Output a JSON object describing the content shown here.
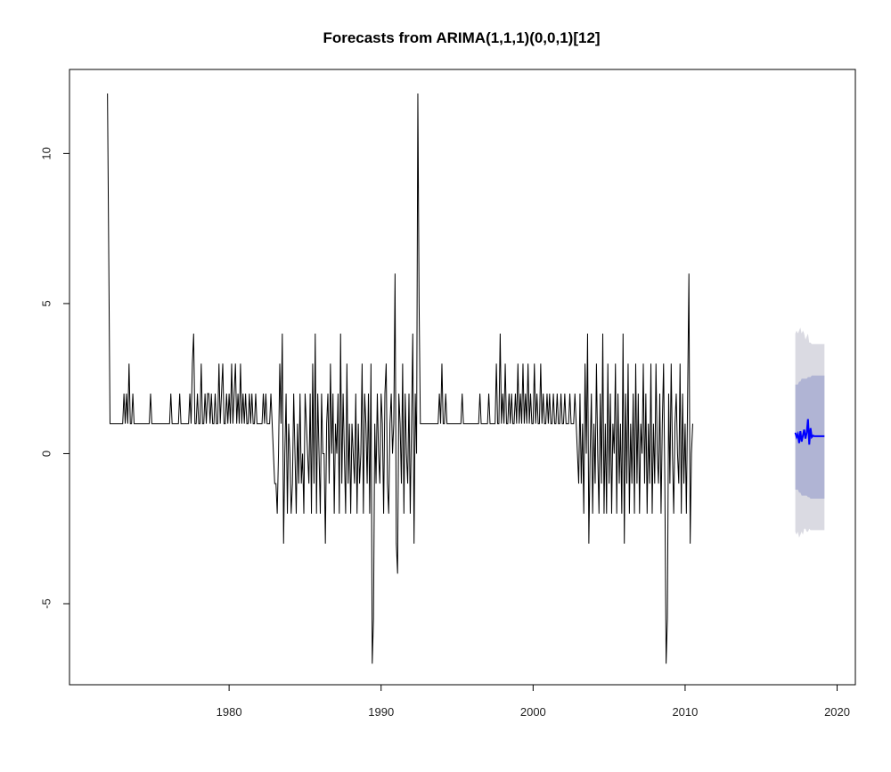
{
  "chart_data": {
    "type": "line",
    "title": "Forecasts from ARIMA(1,1,1)(0,0,1)[12]",
    "xlabel": "",
    "ylabel": "",
    "xlim": [
      1969.5,
      2021.2
    ],
    "ylim": [
      -7.7,
      12.8
    ],
    "x_ticks": [
      1980,
      1990,
      2000,
      2010,
      2020
    ],
    "y_ticks": [
      -5,
      0,
      5,
      10
    ],
    "grid": false,
    "legend": "none",
    "colors": {
      "observed": "#000000",
      "forecast": "#0000FF",
      "pi80": "#B0B4D4",
      "pi95": "#DADAE2"
    },
    "observed": {
      "name": "",
      "start": 1972.0,
      "frequency": 12,
      "values": [
        12,
        6.5,
        1,
        1,
        1,
        1,
        1,
        1,
        1,
        1,
        1,
        1,
        1,
        2,
        1,
        2,
        1,
        3,
        1,
        1,
        2,
        1,
        1,
        1,
        1,
        1,
        1,
        1,
        1,
        1,
        1,
        1,
        1,
        1,
        2,
        1,
        1,
        1,
        1,
        1,
        1,
        1,
        1,
        1,
        1,
        1,
        1,
        1,
        1,
        1,
        2,
        1,
        1,
        1,
        1,
        1,
        1,
        2,
        1,
        1,
        1,
        1,
        1,
        1,
        1,
        2,
        1,
        3,
        4,
        1,
        1,
        2,
        1,
        1,
        3,
        1,
        1,
        2,
        1,
        2,
        2,
        1,
        2,
        1,
        1,
        2,
        1,
        1,
        3,
        1,
        2,
        3,
        1,
        1,
        2,
        1,
        2,
        1,
        3,
        1,
        2,
        3,
        1,
        2,
        1,
        3,
        1,
        2,
        1,
        2,
        1,
        1,
        2,
        1,
        2,
        1,
        1,
        2,
        1,
        1,
        1,
        1,
        1,
        2,
        1,
        2,
        1,
        1,
        1,
        2,
        1,
        0,
        -1,
        -1,
        -2,
        0,
        3,
        1,
        4,
        -3,
        0,
        2,
        -2,
        1,
        0,
        -2,
        -1,
        2,
        0,
        -2,
        1,
        -1,
        2,
        -1,
        0,
        -2,
        2,
        1,
        0,
        -1,
        2,
        -2,
        3,
        -1,
        4,
        -2,
        2,
        0,
        -2,
        2,
        0,
        0,
        -3,
        1,
        2,
        -1,
        3,
        0,
        2,
        -2,
        1,
        0,
        2,
        -2,
        4,
        -1,
        2,
        0,
        -2,
        3,
        -1,
        1,
        -2,
        1,
        0,
        -1,
        2,
        -2,
        1,
        -1,
        0,
        3,
        -2,
        2,
        1,
        -1,
        2,
        -2,
        3,
        -7,
        -5.5,
        1,
        -1,
        2,
        0,
        -1,
        2,
        1,
        -2,
        2,
        3,
        -1,
        -2,
        1,
        2,
        0,
        1,
        6,
        -3,
        -4,
        2,
        1,
        -1,
        3,
        -2,
        2,
        0,
        -1,
        2,
        -2,
        1,
        4,
        -3,
        2,
        0,
        12,
        5,
        1,
        1,
        1,
        1,
        1,
        1,
        1,
        1,
        1,
        1,
        1,
        1,
        1,
        1,
        1,
        2,
        1,
        3,
        1,
        1,
        2,
        1,
        1,
        1,
        1,
        1,
        1,
        1,
        1,
        1,
        1,
        1,
        1,
        2,
        1,
        1,
        1,
        1,
        1,
        1,
        1,
        1,
        1,
        1,
        1,
        1,
        1,
        2,
        1,
        1,
        1,
        1,
        1,
        1,
        2,
        1,
        1,
        1,
        1,
        1,
        3,
        1,
        1,
        4,
        1,
        2,
        1,
        3,
        1,
        1,
        2,
        1,
        2,
        1,
        1,
        2,
        1,
        3,
        1,
        2,
        1,
        3,
        1,
        2,
        1,
        3,
        1,
        2,
        1,
        1,
        3,
        1,
        2,
        1,
        1,
        3,
        1,
        2,
        1,
        1,
        2,
        1,
        2,
        1,
        1,
        2,
        1,
        1,
        2,
        1,
        1,
        2,
        1,
        1,
        2,
        1,
        1,
        1,
        2,
        1,
        1,
        1,
        2,
        1,
        0,
        -1,
        2,
        -1,
        1,
        -2,
        3,
        0,
        4,
        -3,
        0,
        2,
        -2,
        1,
        -1,
        3,
        0,
        -2,
        2,
        -1,
        4,
        -2,
        1,
        -2,
        3,
        -1,
        2,
        -2,
        1,
        0,
        3,
        -2,
        2,
        -1,
        1,
        -2,
        4,
        -3,
        2,
        -1,
        3,
        -2,
        1,
        -1,
        2,
        -2,
        3,
        -1,
        2,
        -2,
        1,
        0,
        3,
        -1,
        2,
        -2,
        1,
        -1,
        3,
        -2,
        1,
        -1,
        3,
        0,
        -1,
        2,
        -2,
        1,
        3,
        -1,
        -7,
        -5.5,
        2,
        -1,
        3,
        0,
        -2,
        1,
        2,
        0,
        -1,
        3,
        -2,
        2,
        -1,
        1,
        -2,
        2,
        6,
        -3,
        0,
        1
      ]
    },
    "forecast": {
      "name": "",
      "start": 2017.25,
      "frequency": 12,
      "values": [
        0.7,
        0.55,
        0.65,
        0.35,
        0.75,
        0.4,
        0.6,
        0.8,
        0.5,
        0.7,
        1.15,
        0.3,
        0.85,
        0.55,
        0.6,
        0.58,
        0.58,
        0.58,
        0.58,
        0.58,
        0.58,
        0.58,
        0.58,
        0.58
      ],
      "pi80_upper": [
        2.3,
        2.3,
        2.3,
        2.4,
        2.4,
        2.5,
        2.5,
        2.5,
        2.5,
        2.5,
        2.55,
        2.55,
        2.55,
        2.6,
        2.6,
        2.6,
        2.6,
        2.6,
        2.6,
        2.6,
        2.6,
        2.6,
        2.6,
        2.6
      ],
      "pi80_lower": [
        -1.2,
        -1.2,
        -1.2,
        -1.3,
        -1.3,
        -1.4,
        -1.4,
        -1.4,
        -1.4,
        -1.4,
        -1.45,
        -1.45,
        -1.5,
        -1.5,
        -1.5,
        -1.5,
        -1.5,
        -1.5,
        -1.5,
        -1.5,
        -1.5,
        -1.5,
        -1.5,
        -1.5
      ],
      "pi95_upper": [
        4.0,
        4.1,
        4.0,
        4.1,
        4.2,
        4.0,
        4.1,
        4.0,
        3.8,
        3.9,
        4.0,
        3.7,
        3.7,
        3.65,
        3.65,
        3.65,
        3.65,
        3.65,
        3.65,
        3.65,
        3.65,
        3.65,
        3.65,
        3.65
      ],
      "pi95_lower": [
        -2.6,
        -2.7,
        -2.6,
        -2.8,
        -2.7,
        -2.6,
        -2.7,
        -2.5,
        -2.5,
        -2.6,
        -2.6,
        -2.5,
        -2.55,
        -2.55,
        -2.55,
        -2.55,
        -2.55,
        -2.55,
        -2.55,
        -2.55,
        -2.55,
        -2.55,
        -2.55,
        -2.55
      ]
    }
  }
}
